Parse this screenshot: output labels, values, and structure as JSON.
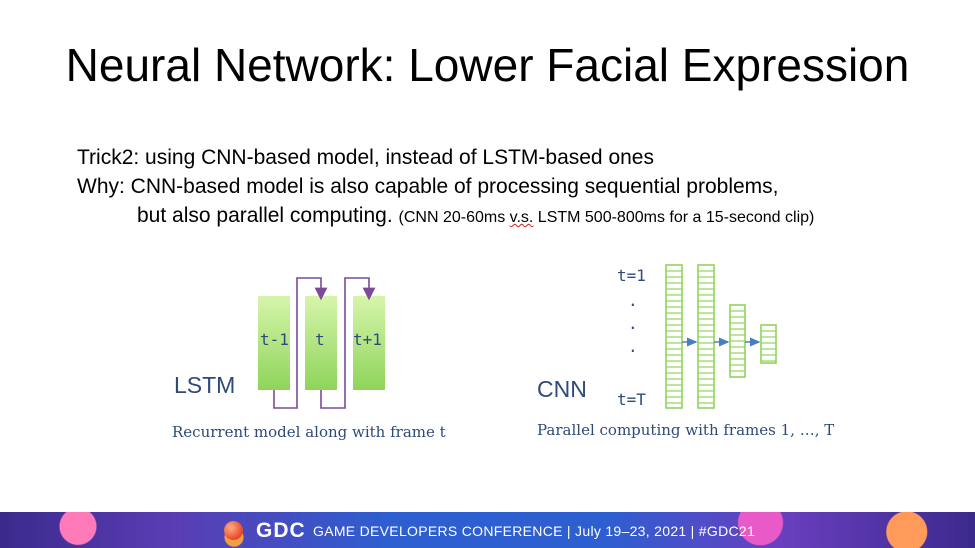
{
  "slide": {
    "title": "Neural Network: Lower Facial Expression",
    "bullets": {
      "trick": "Trick2: using CNN-based model, instead of LSTM-based ones",
      "why": "Why: CNN-based model is also capable of processing sequential problems,",
      "why_cont": "but also parallel computing.",
      "note_pre": "(CNN 20-60ms ",
      "note_vs": "v.s.",
      "note_post": " LSTM 500-800ms for a 15-second clip)"
    },
    "lstm": {
      "label": "LSTM",
      "frames": [
        "t-1",
        "t",
        "t+1"
      ],
      "caption": "Recurrent model along with frame t"
    },
    "cnn": {
      "label": "CNN",
      "t_start": "t=1",
      "dots": ".",
      "t_end": "t=T",
      "caption": "Parallel computing with frames 1,  …, T"
    }
  },
  "footer": {
    "logo": "GDC",
    "text": "GAME DEVELOPERS CONFERENCE  |  July 19–23, 2021  |  #GDC21"
  },
  "colors": {
    "label_blue": "#2e4a7a",
    "frame_green": "#8fd45a",
    "loop_purple": "#7b4a9c",
    "cnn_green": "#8fd45a",
    "arrow_blue": "#4a7cc0"
  }
}
